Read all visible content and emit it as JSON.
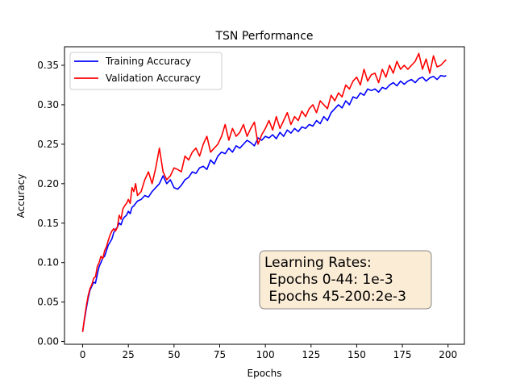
{
  "chart_data": {
    "type": "line",
    "title": "TSN Performance",
    "xlabel": "Epochs",
    "ylabel": "Accuracy",
    "xlim": [
      -9.95,
      208.95
    ],
    "ylim": [
      -0.0035,
      0.3735
    ],
    "xticks": [
      0,
      25,
      50,
      75,
      100,
      125,
      150,
      175,
      200
    ],
    "yticks": [
      0.0,
      0.05,
      0.1,
      0.15,
      0.2,
      0.25,
      0.3,
      0.35
    ],
    "grid": false,
    "legend_position": "upper left",
    "series": [
      {
        "name": "Training Accuracy",
        "color": "#0000ff",
        "x": [
          0,
          1,
          2,
          3,
          4,
          5,
          6,
          7,
          8,
          9,
          10,
          11,
          12,
          13,
          14,
          15,
          16,
          17,
          18,
          19,
          20,
          21,
          22,
          23,
          24,
          25,
          26,
          27,
          28,
          29,
          30,
          32,
          34,
          36,
          38,
          40,
          42,
          44,
          46,
          48,
          50,
          52,
          54,
          56,
          58,
          60,
          62,
          64,
          66,
          68,
          70,
          72,
          74,
          76,
          78,
          80,
          82,
          84,
          86,
          88,
          90,
          92,
          94,
          96,
          98,
          100,
          102,
          104,
          106,
          108,
          110,
          112,
          114,
          116,
          118,
          120,
          122,
          124,
          126,
          128,
          130,
          132,
          134,
          136,
          138,
          140,
          142,
          144,
          146,
          148,
          150,
          152,
          154,
          156,
          158,
          160,
          162,
          164,
          166,
          168,
          170,
          172,
          174,
          176,
          178,
          180,
          182,
          184,
          186,
          188,
          190,
          192,
          194,
          196,
          198,
          199
        ],
        "values": [
          0.013,
          0.028,
          0.042,
          0.055,
          0.065,
          0.07,
          0.075,
          0.074,
          0.085,
          0.095,
          0.1,
          0.106,
          0.108,
          0.115,
          0.122,
          0.126,
          0.13,
          0.138,
          0.142,
          0.145,
          0.15,
          0.148,
          0.155,
          0.158,
          0.16,
          0.165,
          0.162,
          0.17,
          0.172,
          0.175,
          0.178,
          0.18,
          0.185,
          0.183,
          0.19,
          0.195,
          0.2,
          0.21,
          0.2,
          0.205,
          0.195,
          0.193,
          0.198,
          0.205,
          0.208,
          0.215,
          0.213,
          0.22,
          0.222,
          0.218,
          0.23,
          0.225,
          0.235,
          0.24,
          0.238,
          0.245,
          0.24,
          0.248,
          0.245,
          0.25,
          0.255,
          0.252,
          0.248,
          0.258,
          0.255,
          0.26,
          0.258,
          0.262,
          0.257,
          0.265,
          0.26,
          0.268,
          0.264,
          0.27,
          0.266,
          0.272,
          0.27,
          0.275,
          0.273,
          0.28,
          0.276,
          0.285,
          0.28,
          0.29,
          0.295,
          0.3,
          0.296,
          0.305,
          0.3,
          0.31,
          0.308,
          0.315,
          0.312,
          0.32,
          0.318,
          0.32,
          0.316,
          0.322,
          0.32,
          0.325,
          0.328,
          0.324,
          0.33,
          0.326,
          0.33,
          0.332,
          0.328,
          0.333,
          0.335,
          0.33,
          0.334,
          0.336,
          0.332,
          0.337,
          0.336,
          0.337
        ]
      },
      {
        "name": "Validation Accuracy",
        "color": "#ff0000",
        "x": [
          0,
          1,
          2,
          3,
          4,
          5,
          6,
          7,
          8,
          9,
          10,
          11,
          12,
          13,
          14,
          15,
          16,
          17,
          18,
          19,
          20,
          21,
          22,
          23,
          24,
          25,
          26,
          27,
          28,
          29,
          30,
          32,
          34,
          36,
          38,
          40,
          42,
          44,
          46,
          48,
          50,
          52,
          54,
          56,
          58,
          60,
          62,
          64,
          66,
          68,
          70,
          72,
          74,
          76,
          78,
          80,
          82,
          84,
          86,
          88,
          90,
          92,
          94,
          96,
          98,
          100,
          102,
          104,
          106,
          108,
          110,
          112,
          114,
          116,
          118,
          120,
          122,
          124,
          126,
          128,
          130,
          132,
          134,
          136,
          138,
          140,
          142,
          144,
          146,
          148,
          150,
          152,
          154,
          156,
          158,
          160,
          162,
          164,
          166,
          168,
          170,
          172,
          174,
          176,
          178,
          180,
          182,
          184,
          186,
          188,
          190,
          192,
          194,
          196,
          198,
          199
        ],
        "values": [
          0.012,
          0.03,
          0.045,
          0.058,
          0.067,
          0.072,
          0.08,
          0.082,
          0.095,
          0.1,
          0.108,
          0.105,
          0.115,
          0.12,
          0.128,
          0.135,
          0.14,
          0.143,
          0.14,
          0.145,
          0.16,
          0.155,
          0.168,
          0.172,
          0.175,
          0.18,
          0.175,
          0.195,
          0.19,
          0.2,
          0.185,
          0.19,
          0.205,
          0.215,
          0.2,
          0.22,
          0.245,
          0.215,
          0.205,
          0.21,
          0.22,
          0.218,
          0.215,
          0.235,
          0.23,
          0.24,
          0.245,
          0.235,
          0.25,
          0.26,
          0.24,
          0.245,
          0.25,
          0.26,
          0.275,
          0.255,
          0.27,
          0.26,
          0.265,
          0.275,
          0.26,
          0.27,
          0.278,
          0.25,
          0.262,
          0.27,
          0.28,
          0.268,
          0.285,
          0.27,
          0.28,
          0.29,
          0.275,
          0.285,
          0.28,
          0.292,
          0.285,
          0.295,
          0.3,
          0.29,
          0.305,
          0.3,
          0.295,
          0.312,
          0.305,
          0.315,
          0.31,
          0.325,
          0.32,
          0.33,
          0.335,
          0.325,
          0.345,
          0.33,
          0.338,
          0.34,
          0.328,
          0.345,
          0.335,
          0.35,
          0.34,
          0.355,
          0.345,
          0.35,
          0.345,
          0.35,
          0.355,
          0.365,
          0.345,
          0.358,
          0.34,
          0.362,
          0.348,
          0.35,
          0.355,
          0.357
        ]
      }
    ],
    "annotation": {
      "lines": [
        "Learning Rates:",
        " Epochs 0-44: 1e-3",
        " Epochs 45-200:2e-3"
      ],
      "box_facecolor": "#fbecd6",
      "box_edgecolor": "#888888"
    }
  }
}
